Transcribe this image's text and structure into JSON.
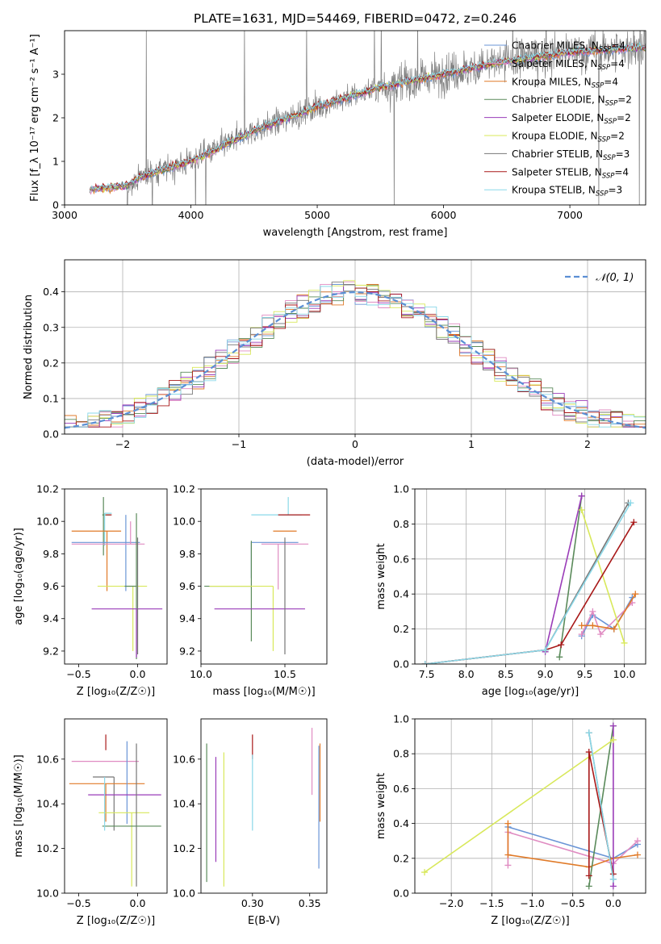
{
  "chart_data": [
    {
      "id": "spectrum",
      "type": "line",
      "title": "PLATE=1631, MJD=54469, FIBERID=0472, z=0.246",
      "xlabel": "wavelength [Angstrom, rest frame]",
      "ylabel": "Flux [f_λ 10⁻¹⁷ erg cm⁻² s⁻¹ A⁻¹]",
      "xlim": [
        3000,
        7600
      ],
      "ylim": [
        0,
        4
      ],
      "xticks": [
        3000,
        4000,
        5000,
        6000,
        7000
      ],
      "yticks": [
        0,
        1,
        2,
        3
      ],
      "legend_position": "top-right",
      "legend": [
        {
          "label": "Chabrier MILES, N",
          "sub": "SSP",
          "suffix": "=4",
          "color": "#6a95d6"
        },
        {
          "label": "Salpeter MILES, N",
          "sub": "SSP",
          "suffix": "=4",
          "color": "#e08cc2"
        },
        {
          "label": "Kroupa MILES, N",
          "sub": "SSP",
          "suffix": "=4",
          "color": "#e07a28"
        },
        {
          "label": "Chabrier ELODIE, N",
          "sub": "SSP",
          "suffix": "=2",
          "color": "#5a8a5a"
        },
        {
          "label": "Salpeter ELODIE, N",
          "sub": "SSP",
          "suffix": "=2",
          "color": "#9a3cb8"
        },
        {
          "label": "Kroupa ELODIE, N",
          "sub": "SSP",
          "suffix": "=2",
          "color": "#d8e85a"
        },
        {
          "label": "Chabrier STELIB, N",
          "sub": "SSP",
          "suffix": "=3",
          "color": "#777777"
        },
        {
          "label": "Salpeter STELIB, N",
          "sub": "SSP",
          "suffix": "=4",
          "color": "#a81818"
        },
        {
          "label": "Kroupa STELIB, N",
          "sub": "SSP",
          "suffix": "=3",
          "color": "#8ad8e8"
        }
      ],
      "continuum": {
        "x": [
          3200,
          3500,
          3600,
          4000,
          4500,
          5000,
          5500,
          6000,
          6500,
          7000,
          7500
        ],
        "y": [
          0.35,
          0.45,
          0.65,
          1.0,
          1.7,
          2.25,
          2.7,
          3.0,
          3.3,
          3.5,
          3.6
        ]
      }
    },
    {
      "id": "residuals",
      "type": "histogram",
      "xlabel": "(data-model)/error",
      "ylabel": "Normed distribution",
      "xlim": [
        -2.5,
        2.5
      ],
      "ylim": [
        0,
        0.49
      ],
      "xticks": [
        -2,
        -1,
        0,
        1,
        2
      ],
      "yticks": [
        0.0,
        0.1,
        0.2,
        0.3,
        0.4
      ],
      "grid": true,
      "legend_position": "top-right",
      "legend": [
        {
          "label": "𝒩(0, 1)",
          "color": "#5b8fd4"
        }
      ],
      "bins": 50
    },
    {
      "id": "age_vs_Z",
      "type": "errorbar",
      "xlabel": "Z [log₁₀(Z/Z☉)]",
      "ylabel": "age  [log₁₀(age/yr)]",
      "xlim": [
        -0.62,
        0.25
      ],
      "ylim": [
        9.12,
        10.2
      ],
      "xticks": [
        -0.5,
        0.0
      ],
      "yticks": [
        9.2,
        9.4,
        9.6,
        9.8,
        10.0,
        10.2
      ],
      "points": [
        {
          "x": -0.29,
          "xerr": [
            0.01,
            0.06
          ],
          "y": 10.04,
          "yerr": [
            0.25,
            0.11
          ],
          "color": "#5a8a5a"
        },
        {
          "x": -0.28,
          "xerr": [
            0.0,
            0.06
          ],
          "y": 10.05,
          "yerr": [
            0.2,
            0.0
          ],
          "color": "#8ad8e8"
        },
        {
          "x": -0.27,
          "xerr": [
            0.0,
            0.05
          ],
          "y": 10.04,
          "yerr": [
            0.0,
            0.0
          ],
          "color": "#a81818"
        },
        {
          "x": -0.26,
          "xerr": [
            0.3,
            0.12
          ],
          "y": 9.94,
          "yerr": [
            0.37,
            0.0
          ],
          "color": "#e07a28"
        },
        {
          "x": -0.1,
          "xerr": [
            0.46,
            0.12
          ],
          "y": 9.87,
          "yerr": [
            0.3,
            0.17
          ],
          "color": "#6a95d6"
        },
        {
          "x": -0.06,
          "xerr": [
            0.5,
            0.12
          ],
          "y": 9.86,
          "yerr": [
            0.0,
            0.14
          ],
          "color": "#e08cc2"
        },
        {
          "x": -0.04,
          "xerr": [
            0.3,
            0.12
          ],
          "y": 9.6,
          "yerr": [
            0.4,
            0.0
          ],
          "color": "#d8e85a"
        },
        {
          "x": -0.01,
          "xerr": [
            0.1,
            0.0
          ],
          "y": 9.6,
          "yerr": [
            0.45,
            0.45
          ],
          "color": "#5a8a5a"
        },
        {
          "x": -0.01,
          "xerr": [
            0.38,
            0.22
          ],
          "y": 9.46,
          "yerr": [
            0.3,
            0.0
          ],
          "color": "#9a3cb8"
        },
        {
          "x": 0.0,
          "xerr": [
            0.0,
            0.0
          ],
          "y": 9.46,
          "yerr": [
            0.28,
            0.44
          ],
          "color": "#777777"
        }
      ]
    },
    {
      "id": "age_vs_mass",
      "type": "errorbar",
      "xlabel": "mass [log₁₀(M/M☉)]",
      "xlim": [
        10.0,
        10.75
      ],
      "ylim": [
        9.12,
        10.2
      ],
      "xticks": [
        10.0,
        10.5
      ],
      "yticks": [
        9.2,
        9.4,
        9.6,
        9.8,
        10.0,
        10.2
      ],
      "points": [
        {
          "x": 10.52,
          "xerr": [
            0.22,
            0.08
          ],
          "y": 10.04,
          "yerr": [
            0.0,
            0.11
          ],
          "color": "#8ad8e8"
        },
        {
          "x": 10.52,
          "xerr": [
            0.06,
            0.13
          ],
          "y": 10.04,
          "yerr": [
            0.0,
            0.0
          ],
          "color": "#a81818"
        },
        {
          "x": 10.53,
          "xerr": [
            0.1,
            0.04
          ],
          "y": 9.94,
          "yerr": [
            0.0,
            0.0
          ],
          "color": "#e07a28"
        },
        {
          "x": 10.46,
          "xerr": [
            0.1,
            0.18
          ],
          "y": 9.86,
          "yerr": [
            0.28,
            0.0
          ],
          "color": "#e08cc2"
        },
        {
          "x": 10.3,
          "xerr": [
            0.0,
            0.28
          ],
          "y": 9.87,
          "yerr": [
            0.22,
            0.0
          ],
          "color": "#6a95d6"
        },
        {
          "x": 10.3,
          "xerr": [
            0.28,
            0.0
          ],
          "y": 9.6,
          "yerr": [
            0.34,
            0.28
          ],
          "color": "#5a8a5a"
        },
        {
          "x": 10.43,
          "xerr": [
            0.38,
            0.0
          ],
          "y": 9.6,
          "yerr": [
            0.4,
            0.0
          ],
          "color": "#d8e85a"
        },
        {
          "x": 10.35,
          "xerr": [
            0.27,
            0.27
          ],
          "y": 9.46,
          "yerr": [
            0.0,
            0.0
          ],
          "color": "#9a3cb8"
        },
        {
          "x": 10.5,
          "xerr": [
            0.0,
            0.0
          ],
          "y": 9.46,
          "yerr": [
            0.28,
            0.44
          ],
          "color": "#777777"
        }
      ]
    },
    {
      "id": "mass_weight_vs_age",
      "type": "line",
      "xlabel": "age  [log₁₀(age/yr)]",
      "ylabel": "mass weight",
      "xlim": [
        7.35,
        10.27
      ],
      "ylim": [
        0.0,
        1.0
      ],
      "xticks": [
        7.5,
        8.0,
        8.5,
        9.0,
        9.5,
        10.0
      ],
      "yticks": [
        0.0,
        0.2,
        0.4,
        0.6,
        0.8,
        1.0
      ],
      "grid": true,
      "series": [
        {
          "color": "#6a95d6",
          "x": [
            9.46,
            9.6,
            9.87,
            10.1
          ],
          "y": [
            0.16,
            0.28,
            0.2,
            0.38
          ]
        },
        {
          "color": "#e08cc2",
          "x": [
            9.46,
            9.6,
            9.7,
            10.1
          ],
          "y": [
            0.17,
            0.3,
            0.17,
            0.35
          ]
        },
        {
          "color": "#e07a28",
          "x": [
            9.46,
            9.6,
            9.87,
            10.14
          ],
          "y": [
            0.22,
            0.22,
            0.2,
            0.4
          ]
        },
        {
          "color": "#5a8a5a",
          "x": [
            9.18,
            9.46
          ],
          "y": [
            0.04,
            0.96
          ]
        },
        {
          "color": "#9a3cb8",
          "x": [
            9.0,
            9.46
          ],
          "y": [
            0.07,
            0.96
          ]
        },
        {
          "color": "#d8e85a",
          "x": [
            9.46,
            10.0
          ],
          "y": [
            0.88,
            0.12
          ]
        },
        {
          "color": "#777777",
          "x": [
            7.48,
            9.0,
            10.05
          ],
          "y": [
            0.0,
            0.08,
            0.92
          ]
        },
        {
          "color": "#a81818",
          "x": [
            7.48,
            9.0,
            9.2,
            10.12
          ],
          "y": [
            0.0,
            0.08,
            0.11,
            0.81
          ]
        },
        {
          "color": "#8ad8e8",
          "x": [
            7.48,
            9.0,
            10.08
          ],
          "y": [
            0.0,
            0.08,
            0.92
          ]
        }
      ]
    },
    {
      "id": "mass_vs_Z",
      "type": "errorbar",
      "xlabel": "Z [log₁₀(Z/Z☉)]",
      "ylabel": "mass [log₁₀(M/M☉)]",
      "xlim": [
        -0.62,
        0.25
      ],
      "ylim": [
        10.0,
        10.78
      ],
      "xticks": [
        -0.5,
        0.0
      ],
      "yticks": [
        10.0,
        10.2,
        10.4,
        10.6
      ],
      "points": [
        {
          "x": -0.27,
          "xerr": [
            0.0,
            0.0
          ],
          "y": 10.64,
          "yerr": [
            0.0,
            0.07
          ],
          "color": "#a81818"
        },
        {
          "x": -0.12,
          "xerr": [
            0.44,
            0.13
          ],
          "y": 10.59,
          "yerr": [
            0.0,
            0.0
          ],
          "color": "#e08cc2"
        },
        {
          "x": -0.2,
          "xerr": [
            0.18,
            0.0
          ],
          "y": 10.52,
          "yerr": [
            0.24,
            0.0
          ],
          "color": "#777777"
        },
        {
          "x": -0.27,
          "xerr": [
            0.31,
            0.33
          ],
          "y": 10.49,
          "yerr": [
            0.17,
            0.0
          ],
          "color": "#e07a28"
        },
        {
          "x": -0.09,
          "xerr": [
            0.0,
            0.0
          ],
          "y": 10.47,
          "yerr": [
            0.16,
            0.21
          ],
          "color": "#6a95d6"
        },
        {
          "x": -0.1,
          "xerr": [
            0.32,
            0.3
          ],
          "y": 10.44,
          "yerr": [
            0.0,
            0.0
          ],
          "color": "#9a3cb8"
        },
        {
          "x": -0.05,
          "xerr": [
            0.28,
            0.15
          ],
          "y": 10.36,
          "yerr": [
            0.33,
            0.0
          ],
          "color": "#d8e85a"
        },
        {
          "x": -0.01,
          "xerr": [
            0.0,
            0.0
          ],
          "y": 10.36,
          "yerr": [
            0.33,
            0.31
          ],
          "color": "#777777"
        },
        {
          "x": -0.08,
          "xerr": [
            0.22,
            0.28
          ],
          "y": 10.3,
          "yerr": [
            0.0,
            0.0
          ],
          "color": "#5a8a5a"
        },
        {
          "x": -0.28,
          "xerr": [
            0.0,
            0.0
          ],
          "y": 10.52,
          "yerr": [
            0.24,
            0.0
          ],
          "color": "#8ad8e8"
        }
      ]
    },
    {
      "id": "mass_vs_ebv",
      "type": "errorbar",
      "xlabel": "E(B-V)",
      "xlim": [
        0.255,
        0.365
      ],
      "ylim": [
        10.0,
        10.78
      ],
      "xticks": [
        0.3,
        0.35
      ],
      "yticks": [
        10.0,
        10.2,
        10.4,
        10.6
      ],
      "points": [
        {
          "x": 0.26,
          "xerr": [
            0.0,
            0.0
          ],
          "y": 10.36,
          "yerr": [
            0.31,
            0.31
          ],
          "color": "#5a8a5a"
        },
        {
          "x": 0.268,
          "xerr": [
            0.0,
            0.0
          ],
          "y": 10.37,
          "yerr": [
            0.23,
            0.24
          ],
          "color": "#9a3cb8"
        },
        {
          "x": 0.275,
          "xerr": [
            0.0,
            0.0
          ],
          "y": 10.33,
          "yerr": [
            0.3,
            0.3
          ],
          "color": "#d8e85a"
        },
        {
          "x": 0.3,
          "xerr": [
            0.0,
            0.0
          ],
          "y": 10.64,
          "yerr": [
            0.04,
            0.07
          ],
          "color": "#a81818"
        },
        {
          "x": 0.3,
          "xerr": [
            0.0,
            0.0
          ],
          "y": 10.44,
          "yerr": [
            0.16,
            0.18
          ],
          "color": "#8ad8e8"
        },
        {
          "x": 0.352,
          "xerr": [
            0.0,
            0.0
          ],
          "y": 10.59,
          "yerr": [
            0.15,
            0.15
          ],
          "color": "#e08cc2"
        },
        {
          "x": 0.359,
          "xerr": [
            0.0,
            0.0
          ],
          "y": 10.5,
          "yerr": [
            0.18,
            0.17
          ],
          "color": "#e07a28"
        },
        {
          "x": 0.358,
          "xerr": [
            0.0,
            0.0
          ],
          "y": 10.36,
          "yerr": [
            0.25,
            0.3
          ],
          "color": "#6a95d6"
        }
      ]
    },
    {
      "id": "mass_weight_vs_Z",
      "type": "line",
      "xlabel": "Z [log₁₀(Z/Z☉)]",
      "ylabel": "mass weight",
      "xlim": [
        -2.45,
        0.4
      ],
      "ylim": [
        0.0,
        1.0
      ],
      "xticks": [
        -2.0,
        -1.5,
        -1.0,
        -0.5,
        0.0
      ],
      "yticks": [
        0.0,
        0.2,
        0.4,
        0.6,
        0.8,
        1.0
      ],
      "grid": true,
      "series": [
        {
          "color": "#6a95d6",
          "x": [
            -1.3,
            0.0,
            0.3
          ],
          "y": [
            0.38,
            0.2,
            0.28
          ]
        },
        {
          "color": "#e08cc2",
          "x": [
            -1.3,
            -1.3,
            0.0,
            0.3
          ],
          "y": [
            0.16,
            0.35,
            0.17,
            0.3
          ]
        },
        {
          "color": "#e07a28",
          "x": [
            -1.3,
            -1.3,
            -0.3,
            0.0,
            0.3
          ],
          "y": [
            0.4,
            0.22,
            0.15,
            0.2,
            0.22
          ]
        },
        {
          "color": "#5a8a5a",
          "x": [
            -0.3,
            0.0
          ],
          "y": [
            0.04,
            0.96
          ]
        },
        {
          "color": "#9a3cb8",
          "x": [
            0.0,
            0.0
          ],
          "y": [
            0.04,
            0.96
          ]
        },
        {
          "color": "#d8e85a",
          "x": [
            -2.33,
            0.0
          ],
          "y": [
            0.12,
            0.88
          ]
        },
        {
          "color": "#777777",
          "x": [
            -0.3,
            0.0
          ],
          "y": [
            0.92,
            0.08
          ]
        },
        {
          "color": "#a81818",
          "x": [
            -0.3,
            -0.3,
            0.0
          ],
          "y": [
            0.1,
            0.81,
            0.11
          ]
        },
        {
          "color": "#8ad8e8",
          "x": [
            -0.3,
            0.0
          ],
          "y": [
            0.92,
            0.08
          ]
        }
      ]
    }
  ]
}
